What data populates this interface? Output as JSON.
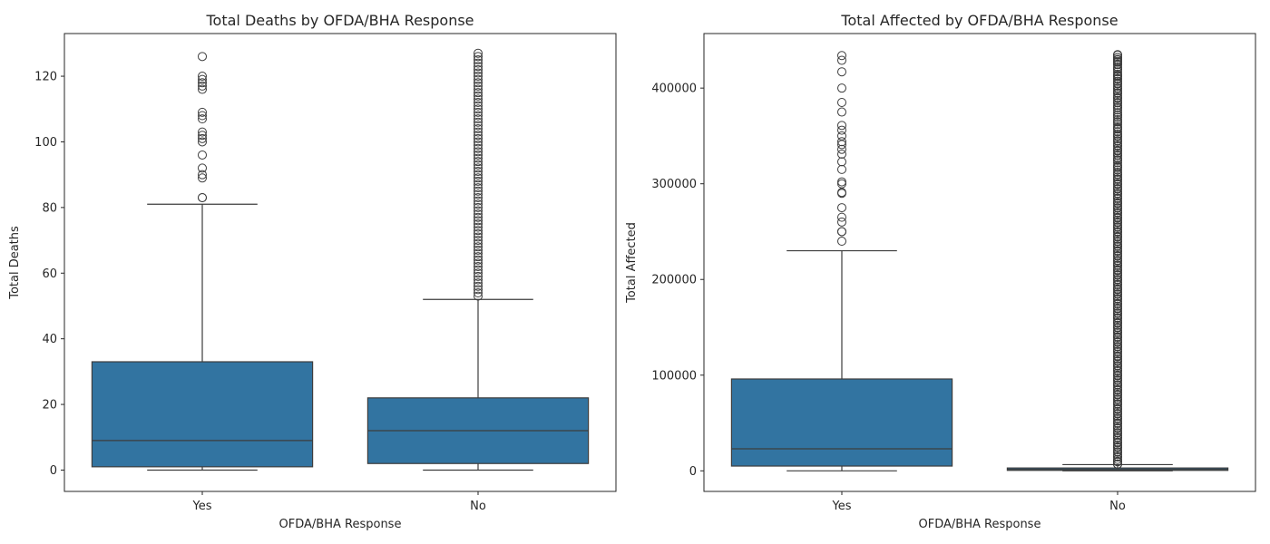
{
  "chart_data": [
    {
      "type": "box",
      "title": "Total Deaths by OFDA/BHA Response",
      "xlabel": "OFDA/BHA Response",
      "ylabel": "Total Deaths",
      "categories": [
        "Yes",
        "No"
      ],
      "ylim": [
        -6.5,
        133
      ],
      "yticks": [
        0,
        20,
        40,
        60,
        80,
        100,
        120
      ],
      "ytick_labels": [
        "0",
        "20",
        "40",
        "60",
        "80",
        "100",
        "120"
      ],
      "grid": false,
      "color": "#3274a1",
      "boxes": [
        {
          "category": "Yes",
          "whisker_low": 0,
          "q1": 1,
          "median": 9,
          "q3": 33,
          "whisker_high": 81,
          "outliers": [
            83,
            83,
            89,
            90,
            92,
            96,
            100,
            101,
            102,
            103,
            107,
            108,
            109,
            116,
            117,
            118,
            119,
            120,
            126
          ]
        },
        {
          "category": "No",
          "whisker_low": 0,
          "q1": 2,
          "median": 12,
          "q3": 22,
          "whisker_high": 52,
          "outliers": [
            53,
            54,
            55,
            56,
            57,
            58,
            59,
            60,
            61,
            62,
            63,
            64,
            65,
            66,
            67,
            68,
            69,
            70,
            71,
            72,
            73,
            74,
            75,
            76,
            77,
            78,
            79,
            80,
            81,
            82,
            83,
            84,
            85,
            86,
            87,
            88,
            89,
            90,
            91,
            92,
            93,
            94,
            95,
            96,
            97,
            98,
            99,
            100,
            101,
            102,
            103,
            104,
            105,
            106,
            107,
            108,
            109,
            110,
            111,
            112,
            113,
            114,
            115,
            116,
            117,
            118,
            119,
            120,
            121,
            122,
            123,
            124,
            125,
            126,
            127
          ]
        }
      ]
    },
    {
      "type": "box",
      "title": "Total Affected by OFDA/BHA Response",
      "xlabel": "OFDA/BHA Response",
      "ylabel": "Total Affected",
      "categories": [
        "Yes",
        "No"
      ],
      "ylim": [
        -21500,
        457000
      ],
      "yticks": [
        0,
        100000,
        200000,
        300000,
        400000
      ],
      "ytick_labels": [
        "0",
        "100000",
        "200000",
        "300000",
        "400000"
      ],
      "grid": false,
      "color": "#3274a1",
      "boxes": [
        {
          "category": "Yes",
          "whisker_low": 0,
          "q1": 5000,
          "median": 23000,
          "q3": 96000,
          "whisker_high": 230000,
          "outliers": [
            240000,
            250000,
            250000,
            260000,
            265000,
            275000,
            290000,
            291000,
            300000,
            302000,
            315000,
            323000,
            331000,
            336000,
            341000,
            344000,
            350000,
            356000,
            361000,
            375000,
            385000,
            400000,
            417000,
            429000,
            434000
          ]
        },
        {
          "category": "No",
          "whisker_low": 0,
          "q1": 500,
          "median": 1500,
          "q3": 3000,
          "whisker_high": 6500,
          "outliers_range": [
            7000,
            435000
          ],
          "outliers": [
            7000,
            10000,
            15000,
            20000,
            25000,
            30000,
            35000,
            40000,
            45000,
            50000,
            55000,
            60000,
            65000,
            70000,
            75000,
            80000,
            85000,
            90000,
            95000,
            100000,
            105000,
            110000,
            115000,
            120000,
            125000,
            130000,
            135000,
            140000,
            145000,
            150000,
            155000,
            160000,
            165000,
            170000,
            175000,
            180000,
            185000,
            190000,
            195000,
            200000,
            205000,
            210000,
            215000,
            220000,
            225000,
            230000,
            235000,
            240000,
            245000,
            250000,
            255000,
            260000,
            265000,
            270000,
            275000,
            280000,
            285000,
            290000,
            295000,
            300000,
            305000,
            310000,
            318000,
            325000,
            330000,
            335000,
            340000,
            345000,
            350000,
            358000,
            365000,
            372000,
            380000,
            385000,
            390000,
            395000,
            400000,
            405000,
            410000,
            413000,
            420000,
            425000,
            428000,
            430000,
            432000,
            435000
          ]
        }
      ]
    }
  ]
}
